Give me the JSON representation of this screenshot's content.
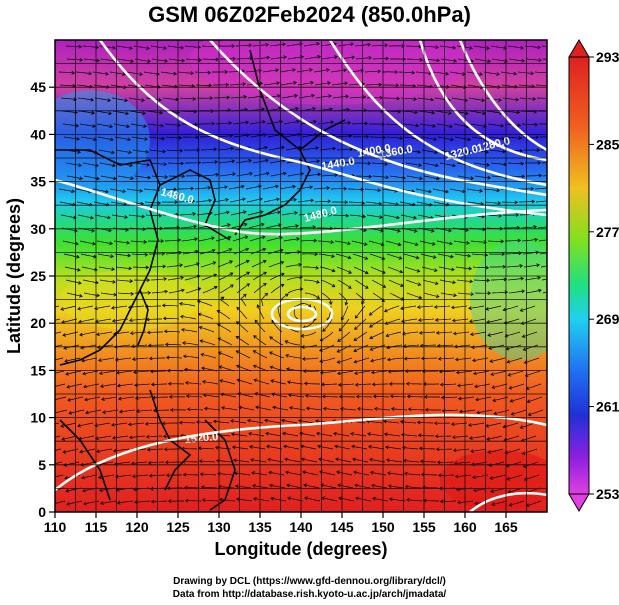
{
  "title": "GSM 06Z02Feb2024 (850.0hPa)",
  "credits": {
    "line1": "Drawing by DCL (https://www.gfd-dennou.org/library/dcl/)",
    "line2": "Data from http://database.rish.kyoto-u.ac.jp/arch/jmadata/"
  },
  "chart_data": {
    "type": "map",
    "title": "GSM 06Z02Feb2024 (850.0hPa)",
    "xlabel": "Longitude (degrees)",
    "ylabel": "Latitude  (degrees)",
    "xlim": [
      110,
      170
    ],
    "ylim": [
      0,
      50
    ],
    "x_ticks": [
      110,
      115,
      120,
      125,
      130,
      135,
      140,
      145,
      150,
      155,
      160,
      165
    ],
    "y_ticks": [
      0,
      5,
      10,
      15,
      20,
      25,
      30,
      35,
      40,
      45
    ],
    "grid": true,
    "colorbar": {
      "variable": "temperature",
      "min": 253,
      "max": 293,
      "tick_labels": [
        "293",
        "285",
        "277",
        "269",
        "261",
        "253"
      ],
      "colors": [
        "#e040e0",
        "#8a20e0",
        "#2030e0",
        "#2080f0",
        "#20d0f0",
        "#20e080",
        "#60e020",
        "#c8e020",
        "#f0d020",
        "#f09020",
        "#f05020",
        "#e02020"
      ]
    },
    "contours": {
      "variable": "geopotential height",
      "color": "#ffffff",
      "labels": [
        {
          "text": "1280.0",
          "lon": 164,
          "lat": 40.5
        },
        {
          "text": "1320.0",
          "lon": 159,
          "lat": 39.6
        },
        {
          "text": "1360.0",
          "lon": 152,
          "lat": 38.5
        },
        {
          "text": "1400.0",
          "lon": 146,
          "lat": 38.6
        },
        {
          "text": "1440.0",
          "lon": 142,
          "lat": 37.2
        },
        {
          "text": "1480.0",
          "lon": 119,
          "lat": 33.8
        },
        {
          "text": "1480.0",
          "lon": 143,
          "lat": 32.3
        },
        {
          "text": "1520.0",
          "lon": 124,
          "lat": 7.4
        }
      ]
    },
    "streamlines": true
  }
}
